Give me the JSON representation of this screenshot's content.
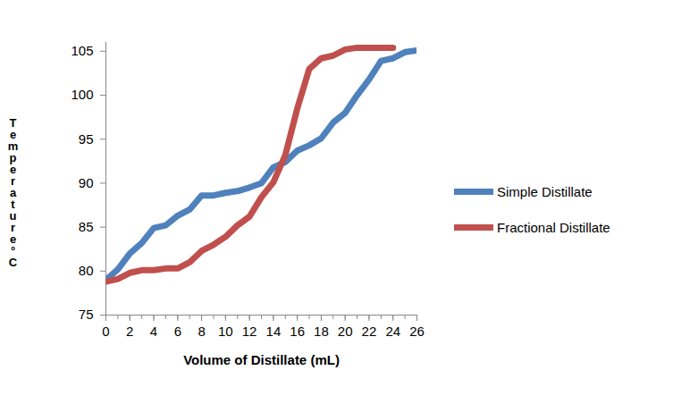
{
  "chart_data": {
    "type": "line",
    "x_label": "Volume of Distillate (mL)",
    "y_label": "Temperature°C",
    "x": [
      0,
      1,
      2,
      3,
      4,
      5,
      6,
      7,
      8,
      9,
      10,
      11,
      12,
      13,
      14,
      15,
      16,
      17,
      18,
      19,
      20,
      21,
      22,
      23,
      24,
      25,
      26
    ],
    "series": [
      {
        "name": "Simple Distillate",
        "color": "#4f81bd",
        "values": [
          79,
          80.2,
          82,
          83.2,
          84.9,
          85.2,
          86.3,
          87,
          88.6,
          88.6,
          88.9,
          89.1,
          89.5,
          90,
          91.8,
          92.4,
          93.7,
          94.3,
          95.1,
          96.9,
          98,
          100,
          101.8,
          103.9,
          104.2,
          104.9,
          105.1
        ]
      },
      {
        "name": "Fractional Distillate",
        "color": "#c0504d",
        "values": [
          78.8,
          79.1,
          79.8,
          80.1,
          80.1,
          80.3,
          80.3,
          81,
          82.3,
          83,
          83.9,
          85.2,
          86.2,
          88.4,
          90.1,
          93.2,
          98.5,
          103,
          104.2,
          104.5,
          105.2,
          105.4,
          105.4,
          105.4,
          105.4,
          null,
          null
        ]
      }
    ],
    "xlim": [
      0,
      26
    ],
    "xticks": [
      0,
      2,
      4,
      6,
      8,
      10,
      12,
      14,
      16,
      18,
      20,
      22,
      24,
      26
    ],
    "ylim": [
      75,
      106
    ],
    "yticks": [
      75,
      80,
      85,
      90,
      95,
      100,
      105
    ],
    "grid": false,
    "legend": "right"
  }
}
